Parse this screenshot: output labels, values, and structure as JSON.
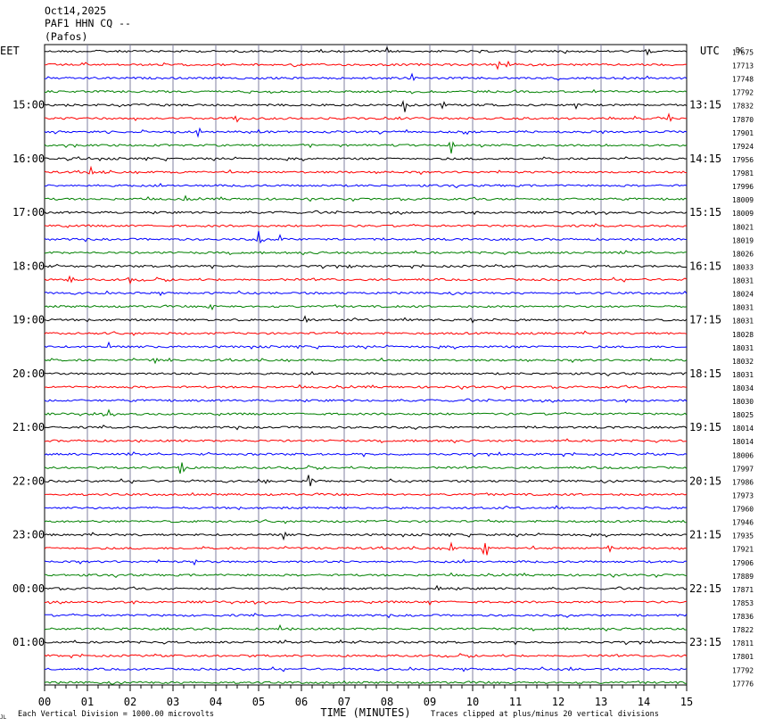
{
  "header": {
    "date": "Oct14,2025",
    "station": "PAF1 HHN CQ --",
    "location": "(Pafos)"
  },
  "left_zone": "EET",
  "right_zone": "UTC",
  "count_header": "DC",
  "footer": {
    "xlabel": "TIME (MINUTES)",
    "scale_note": "Each Vertical Division = 1000.00 microvolts",
    "clip_note": "Traces clipped at plus/minus 20 vertical divisions",
    "logo_text": "JL"
  },
  "colors": {
    "trace_cycle": [
      "#000000",
      "#ff0000",
      "#0000ff",
      "#008000"
    ],
    "grid": "#8080a0"
  },
  "chart_data": {
    "type": "line",
    "xlabel": "TIME (MINUTES)",
    "xlim": [
      0,
      15
    ],
    "x_ticks": [
      "00",
      "01",
      "02",
      "03",
      "04",
      "05",
      "06",
      "07",
      "08",
      "09",
      "10",
      "11",
      "12",
      "13",
      "14",
      "15"
    ],
    "left_time_labels": [
      "15:00",
      "16:00",
      "17:00",
      "18:00",
      "19:00",
      "20:00",
      "21:00",
      "22:00",
      "23:00",
      "00:00",
      "01:00"
    ],
    "right_time_labels": [
      "13:15",
      "14:15",
      "15:15",
      "16:15",
      "17:15",
      "18:15",
      "19:15",
      "20:15",
      "21:15",
      "22:15",
      "23:15"
    ],
    "rows_per_label": 4,
    "first_labeled_row": 4,
    "rows": 48,
    "row_counts": [
      "17675",
      "17713",
      "17748",
      "17792",
      "17832",
      "17870",
      "17901",
      "17924",
      "17956",
      "17981",
      "17996",
      "18009",
      "18009",
      "18021",
      "18019",
      "18026",
      "18033",
      "18031",
      "18024",
      "18031",
      "18031",
      "18028",
      "18031",
      "18032",
      "18031",
      "18034",
      "18030",
      "18025",
      "18014",
      "18014",
      "18006",
      "17997",
      "17986",
      "17973",
      "17960",
      "17946",
      "17935",
      "17921",
      "17906",
      "17889",
      "17871",
      "17853",
      "17836",
      "17822",
      "17811",
      "17801",
      "17792",
      "17776"
    ],
    "events": [
      [
        0,
        8.0,
        -4
      ],
      [
        0,
        14.1,
        4
      ],
      [
        1,
        10.6,
        5
      ],
      [
        1,
        10.8,
        -4
      ],
      [
        2,
        8.6,
        -5
      ],
      [
        4,
        8.4,
        10
      ],
      [
        4,
        9.3,
        -6
      ],
      [
        4,
        12.4,
        5
      ],
      [
        5,
        4.5,
        4
      ],
      [
        5,
        14.6,
        -6
      ],
      [
        6,
        3.6,
        7
      ],
      [
        7,
        9.5,
        8
      ],
      [
        7,
        6.2,
        -3
      ],
      [
        9,
        1.1,
        -7
      ],
      [
        9,
        1.4,
        3
      ],
      [
        11,
        3.3,
        3
      ],
      [
        14,
        5.0,
        -9
      ],
      [
        14,
        5.5,
        -5
      ],
      [
        16,
        7.1,
        5
      ],
      [
        17,
        0.6,
        -5
      ],
      [
        17,
        2.0,
        4
      ],
      [
        19,
        3.9,
        4
      ],
      [
        20,
        6.1,
        -6
      ],
      [
        20,
        10.0,
        3
      ],
      [
        22,
        1.5,
        -4
      ],
      [
        23,
        2.6,
        5
      ],
      [
        23,
        2.9,
        -4
      ],
      [
        27,
        1.5,
        -5
      ],
      [
        31,
        3.2,
        10
      ],
      [
        32,
        6.2,
        -12
      ],
      [
        32,
        5.2,
        4
      ],
      [
        36,
        5.6,
        7
      ],
      [
        37,
        9.5,
        -5
      ],
      [
        37,
        10.3,
        12
      ],
      [
        37,
        13.2,
        -6
      ],
      [
        38,
        3.5,
        4
      ],
      [
        38,
        6.9,
        -3
      ],
      [
        40,
        9.2,
        -4
      ],
      [
        41,
        9.0,
        4
      ],
      [
        43,
        5.5,
        -3
      ],
      [
        44,
        6.9,
        -2
      ],
      [
        46,
        12.3,
        3
      ]
    ]
  }
}
